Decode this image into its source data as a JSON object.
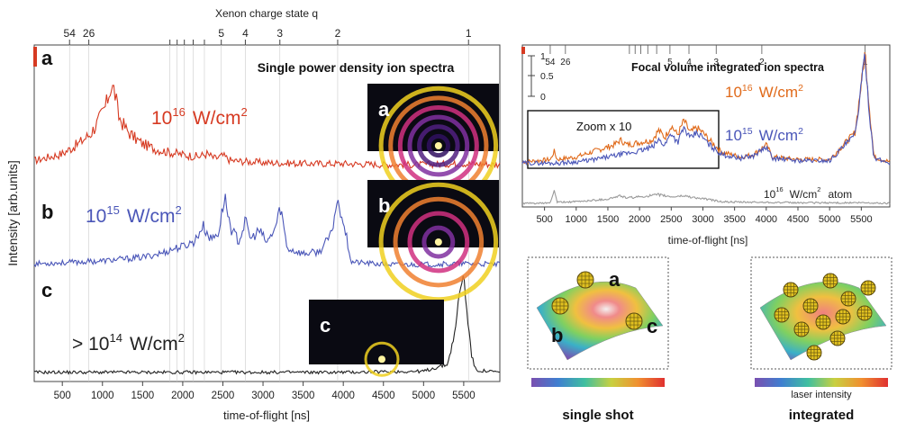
{
  "colors": {
    "red": "#d63a22",
    "blue": "#4a56b8",
    "black": "#222222",
    "orange": "#e06a1a",
    "gray": "#9a9a9a"
  },
  "top_axis": {
    "label": "Xenon charge state q",
    "ticks": [
      {
        "label": "54",
        "tof": 590
      },
      {
        "label": "26",
        "tof": 830
      },
      {
        "label": "",
        "tof": 1840
      },
      {
        "label": "",
        "tof": 1930
      },
      {
        "label": "",
        "tof": 2020
      },
      {
        "label": "",
        "tof": 2130
      },
      {
        "label": "",
        "tof": 2270
      },
      {
        "label": "5",
        "tof": 2480
      },
      {
        "label": "4",
        "tof": 2780
      },
      {
        "label": "3",
        "tof": 3210
      },
      {
        "label": "2",
        "tof": 3930
      },
      {
        "label": "1",
        "tof": 5560
      }
    ]
  },
  "chart_data": [
    {
      "type": "line",
      "title": "Single power density ion spectra",
      "xlabel": "time-of-flight [ns]",
      "ylabel": "Intensity [arb.units]",
      "xlim": [
        150,
        5950
      ],
      "xticks": [
        500,
        1000,
        1500,
        2000,
        2500,
        3000,
        3500,
        4000,
        4500,
        5000,
        5500
      ],
      "series": [
        {
          "panel": "a",
          "name": "10",
          "exponent": "16",
          "unit": "W/cm",
          "unit_exp": "2",
          "color": "#d63a22",
          "x": [
            150,
            300,
            500,
            700,
            850,
            950,
            1050,
            1100,
            1150,
            1200,
            1300,
            1400,
            1500,
            1650,
            1800,
            2000,
            2200,
            2300,
            2400,
            2500,
            2600,
            3000,
            3500,
            4000,
            4500,
            5000,
            5500,
            5950
          ],
          "y": [
            0.05,
            0.08,
            0.12,
            0.22,
            0.32,
            0.45,
            0.62,
            0.8,
            0.76,
            0.5,
            0.36,
            0.28,
            0.22,
            0.17,
            0.14,
            0.11,
            0.09,
            0.12,
            0.07,
            0.1,
            0.05,
            0.03,
            0.02,
            0.02,
            0.01,
            0.01,
            0.02,
            0.01
          ]
        },
        {
          "panel": "b",
          "name": "10",
          "exponent": "15",
          "unit": "W/cm",
          "unit_exp": "2",
          "color": "#4a56b8",
          "x": [
            150,
            500,
            1000,
            1500,
            1750,
            1900,
            2000,
            2150,
            2250,
            2350,
            2450,
            2520,
            2600,
            2700,
            2780,
            2850,
            2950,
            3050,
            3150,
            3220,
            3300,
            3500,
            3700,
            3850,
            3920,
            3980,
            4100,
            4500,
            5000,
            5500,
            5950
          ],
          "y": [
            0.03,
            0.04,
            0.06,
            0.1,
            0.15,
            0.2,
            0.22,
            0.28,
            0.45,
            0.3,
            0.38,
            0.78,
            0.42,
            0.28,
            0.5,
            0.3,
            0.4,
            0.26,
            0.42,
            0.66,
            0.2,
            0.14,
            0.16,
            0.35,
            0.72,
            0.6,
            0.05,
            0.02,
            0.02,
            0.03,
            0.02
          ]
        },
        {
          "panel": "c",
          "name": "> 10",
          "exponent": "14",
          "unit": "W/cm",
          "unit_exp": "2",
          "color": "#222222",
          "x": [
            150,
            1000,
            2000,
            3000,
            4000,
            5000,
            5300,
            5400,
            5450,
            5500,
            5550,
            5600,
            5650,
            5950
          ],
          "y": [
            0.02,
            0.02,
            0.02,
            0.02,
            0.02,
            0.03,
            0.1,
            0.45,
            0.85,
            0.97,
            0.55,
            0.18,
            0.04,
            0.02
          ]
        }
      ],
      "insets": [
        {
          "label": "a",
          "rings": 6
        },
        {
          "label": "b",
          "rings": 4
        },
        {
          "label": "c",
          "rings": 1
        }
      ]
    },
    {
      "type": "line",
      "title": "Focal volume integrated ion spectra",
      "xlabel": "time-of-flight [ns]",
      "xlim": [
        150,
        5950
      ],
      "xticks": [
        500,
        1000,
        1500,
        2000,
        2500,
        3000,
        3500,
        4000,
        4500,
        5000,
        5500
      ],
      "scale_bar": {
        "labels": [
          "1",
          "0.5",
          "0"
        ]
      },
      "zoom_label": "Zoom x 10",
      "series": [
        {
          "name": "10",
          "exponent": "16",
          "unit": "W/cm",
          "unit_exp": "2",
          "color": "#e06a1a",
          "x": [
            150,
            400,
            600,
            650,
            700,
            1000,
            1300,
            1600,
            1700,
            1800,
            2000,
            2200,
            2300,
            2400,
            2500,
            2600,
            2700,
            2800,
            2900,
            3000,
            3100,
            3300,
            3600,
            3800,
            3900,
            4000,
            4100,
            4500,
            5000,
            5400,
            5500,
            5560,
            5620,
            5700,
            5950
          ],
          "y": [
            0.06,
            0.07,
            0.08,
            0.15,
            0.08,
            0.1,
            0.15,
            0.2,
            0.24,
            0.2,
            0.22,
            0.24,
            0.32,
            0.26,
            0.36,
            0.28,
            0.4,
            0.3,
            0.34,
            0.3,
            0.24,
            0.14,
            0.1,
            0.12,
            0.16,
            0.2,
            0.1,
            0.08,
            0.08,
            0.3,
            0.7,
            0.97,
            0.55,
            0.1,
            0.06
          ]
        },
        {
          "name": "10",
          "exponent": "15",
          "unit": "W/cm",
          "unit_exp": "2",
          "color": "#4a56b8",
          "x": [
            150,
            400,
            700,
            1000,
            1300,
            1600,
            1800,
            2000,
            2200,
            2300,
            2400,
            2500,
            2600,
            2700,
            2800,
            2900,
            3000,
            3100,
            3300,
            3600,
            3800,
            3900,
            4000,
            4100,
            4500,
            5000,
            5400,
            5500,
            5560,
            5620,
            5700,
            5950
          ],
          "y": [
            0.05,
            0.05,
            0.05,
            0.06,
            0.08,
            0.11,
            0.13,
            0.15,
            0.18,
            0.24,
            0.2,
            0.3,
            0.22,
            0.34,
            0.25,
            0.3,
            0.26,
            0.2,
            0.12,
            0.09,
            0.11,
            0.15,
            0.18,
            0.09,
            0.07,
            0.07,
            0.28,
            0.68,
            0.95,
            0.5,
            0.09,
            0.05
          ]
        },
        {
          "name": "10",
          "exponent": "16",
          "unit": "W/cm",
          "unit_exp": "2",
          "extra": "atom",
          "color": "#9a9a9a",
          "x": [
            150,
            500,
            600,
            650,
            700,
            1000,
            1500,
            1700,
            1800,
            2000,
            2300,
            2500,
            2700,
            2900,
            3100,
            3300,
            3600,
            4000,
            4500,
            5000,
            5500,
            5950
          ],
          "y": [
            0.0,
            0.0,
            0.02,
            0.25,
            0.02,
            0.03,
            0.08,
            0.14,
            0.1,
            0.12,
            0.16,
            0.12,
            0.14,
            0.1,
            0.07,
            0.03,
            0.02,
            0.02,
            0.01,
            0.01,
            0.01,
            0.0
          ]
        }
      ]
    }
  ],
  "schematics": [
    {
      "caption": "single shot",
      "labels": [
        "a",
        "b",
        "c"
      ],
      "bar_label": ""
    },
    {
      "caption": "integrated",
      "labels": [],
      "bar_label": "laser intensity"
    }
  ]
}
